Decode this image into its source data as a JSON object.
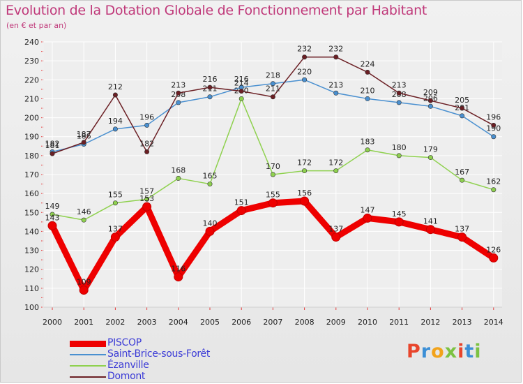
{
  "header": {
    "title": "Evolution de la Dotation Globale de Fonctionnement par Habitant",
    "subtitle": "(en € et par an)"
  },
  "logo": {
    "text": "Proxiti",
    "letters": [
      {
        "ch": "P",
        "color": "#e8452c"
      },
      {
        "ch": "r",
        "color": "#3c8fd6"
      },
      {
        "ch": "o",
        "color": "#f2a31b"
      },
      {
        "ch": "x",
        "color": "#7cc242"
      },
      {
        "ch": "i",
        "color": "#e8452c"
      },
      {
        "ch": "t",
        "color": "#3c8fd6"
      },
      {
        "ch": "i",
        "color": "#7cc242"
      }
    ]
  },
  "chart_data": {
    "type": "line",
    "x": [
      2000,
      2001,
      2002,
      2003,
      2004,
      2005,
      2006,
      2007,
      2008,
      2009,
      2010,
      2011,
      2012,
      2013,
      2014
    ],
    "ylim": [
      100,
      240
    ],
    "yticks": [
      100,
      110,
      120,
      130,
      140,
      150,
      160,
      170,
      180,
      190,
      200,
      210,
      220,
      230,
      240
    ],
    "grid": true,
    "legend_position": "bottom-left",
    "series": [
      {
        "name": "PISCOP",
        "color": "#ee0000",
        "values": [
          143,
          109,
          137,
          153,
          116,
          140,
          151,
          155,
          156,
          137,
          147,
          145,
          141,
          137,
          126
        ]
      },
      {
        "name": "Saint-Brice-sous-Forêt",
        "color": "#4a90d0",
        "values": [
          182,
          186,
          194,
          196,
          208,
          211,
          216,
          218,
          220,
          213,
          210,
          208,
          206,
          201,
          190
        ]
      },
      {
        "name": "Ézanville",
        "color": "#8fd14f",
        "values": [
          149,
          146,
          155,
          157,
          168,
          165,
          210,
          170,
          172,
          172,
          183,
          180,
          179,
          167,
          162
        ]
      },
      {
        "name": "Domont",
        "color": "#6b1f24",
        "values": [
          181,
          187,
          212,
          182,
          213,
          216,
          214,
          211,
          232,
          232,
          224,
          213,
          209,
          205,
          196
        ]
      }
    ]
  }
}
